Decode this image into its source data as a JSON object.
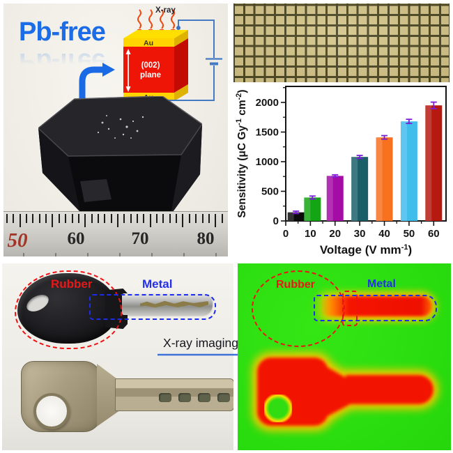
{
  "panel_crystal": {
    "pb_free": "Pb-free",
    "diagram": {
      "xray": "X-ray",
      "au_top": "Au",
      "au_bottom": "Au",
      "plane1": "(002)",
      "plane2": "plane"
    },
    "ruler": {
      "numbers": [
        "50",
        "60",
        "70",
        "80"
      ]
    }
  },
  "panel_keys": {
    "rubber": "Rubber",
    "metal": "Metal",
    "arrow_label": "X-ray imaging"
  },
  "panel_xray": {
    "rubber": "Rubber",
    "metal": "Metal"
  },
  "chart_data": {
    "type": "bar",
    "categories": [
      5,
      10,
      20,
      30,
      40,
      50,
      60
    ],
    "values": [
      145,
      395,
      760,
      1080,
      1410,
      1680,
      1950
    ],
    "errors": [
      20,
      25,
      18,
      25,
      30,
      35,
      55
    ],
    "bar_colors": [
      "#0b0b0b",
      "#13a513",
      "#a50ba5",
      "#1a5f68",
      "#f8711f",
      "#41bdec",
      "#b5190f"
    ],
    "error_color": "#7b1fd6",
    "xticks": [
      0,
      10,
      20,
      30,
      40,
      50,
      60
    ],
    "yticks": [
      0,
      500,
      1000,
      1500,
      2000
    ],
    "xlim": [
      0,
      65
    ],
    "ylim": [
      0,
      2270
    ],
    "grid": false,
    "legend": false,
    "title": "",
    "xlabel_parts": [
      {
        "t": "Voltage (V mm",
        "sup": false
      },
      {
        "t": "-1",
        "sup": true
      },
      {
        "t": ")",
        "sup": false
      }
    ],
    "ylabel_parts": [
      {
        "t": "Sensitivity (μC Gy",
        "sup": false
      },
      {
        "t": "-1",
        "sup": true
      },
      {
        "t": " cm",
        "sup": false
      },
      {
        "t": "-2",
        "sup": true
      },
      {
        "t": ")",
        "sup": false
      }
    ]
  }
}
